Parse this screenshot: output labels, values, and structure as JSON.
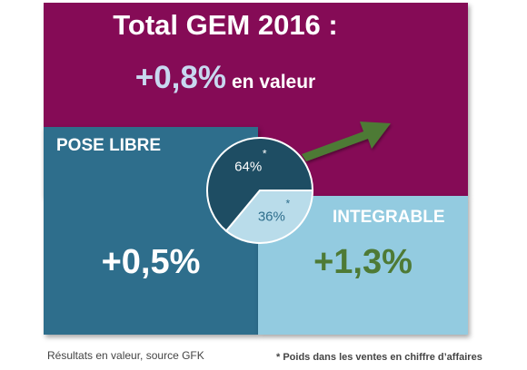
{
  "header": {
    "title": "Total GEM 2016 :",
    "total_value": "+0,8%",
    "total_suffix": "en valeur"
  },
  "segments": {
    "pose_libre": {
      "label": "POSE LIBRE",
      "value": "+0,5%"
    },
    "integrable": {
      "label": "INTEGRABLE",
      "value": "+1,3%"
    }
  },
  "footer": {
    "source": "Résultats en valeur, source GFK",
    "weight_note": "* Poids dans les ventes en chiffre d’affaires"
  },
  "colors": {
    "total": "#850b56",
    "pose_libre": "#2e6e8c",
    "integrable": "#93cbe0",
    "pie_dark": "#1e4d63",
    "pie_light": "#b9dcea",
    "arrow": "#4e7a35"
  },
  "chart_data": [
    {
      "type": "pie",
      "categories": [
        "POSE LIBRE",
        "INTEGRABLE"
      ],
      "values": [
        64,
        36
      ],
      "labels": [
        "64%",
        "36%"
      ],
      "marker": "*"
    },
    {
      "type": "table",
      "rows": [
        {
          "segment": "Total GEM 2016",
          "growth_percent": 0.8
        },
        {
          "segment": "POSE LIBRE",
          "growth_percent": 0.5
        },
        {
          "segment": "INTEGRABLE",
          "growth_percent": 1.3
        }
      ]
    }
  ]
}
